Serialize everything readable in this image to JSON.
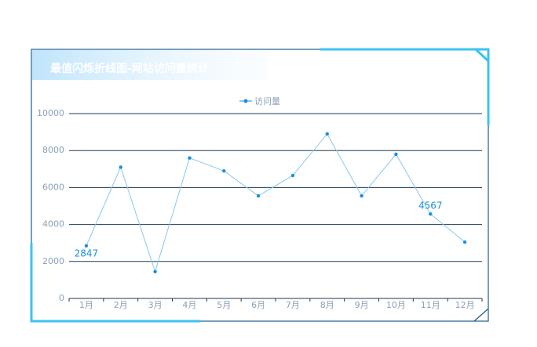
{
  "chart_data": {
    "type": "line",
    "title": "最值闪烁折线图-网站访问量统计",
    "categories": [
      "1月",
      "2月",
      "3月",
      "4月",
      "5月",
      "6月",
      "7月",
      "8月",
      "9月",
      "10月",
      "11月",
      "12月"
    ],
    "series": [
      {
        "name": "访问量",
        "color": "#1a8ee0",
        "values": [
          2847,
          7100,
          1450,
          7600,
          6900,
          5550,
          6650,
          8900,
          5550,
          7800,
          4567,
          3050
        ],
        "value_labels": [
          "2847",
          null,
          null,
          null,
          null,
          null,
          null,
          null,
          null,
          null,
          "4567",
          null
        ]
      }
    ],
    "ylim": [
      0,
      10000
    ],
    "yticks": [
      0,
      2000,
      4000,
      6000,
      8000,
      10000
    ],
    "grid": true,
    "legend": "top"
  }
}
